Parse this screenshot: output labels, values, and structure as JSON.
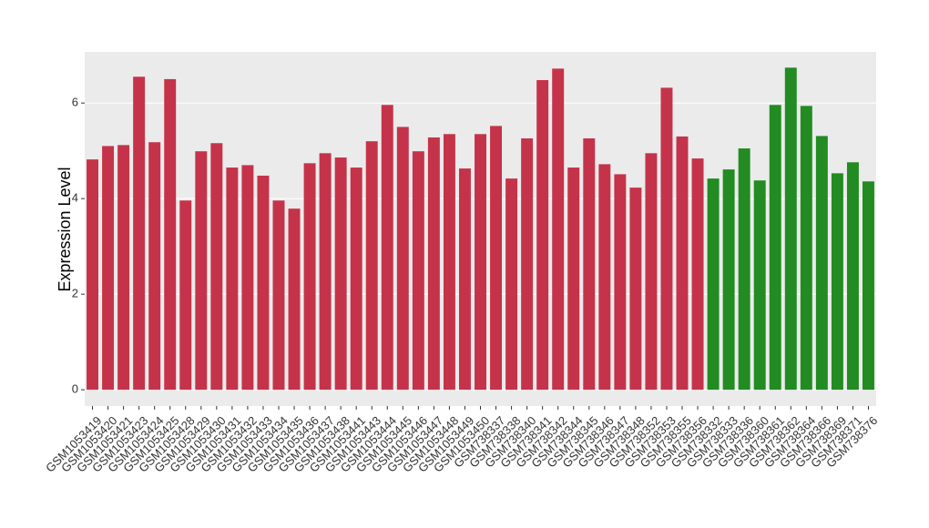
{
  "chart_data": {
    "type": "bar",
    "y_label": "Expression Level",
    "categories": [
      "GSM1053419",
      "GSM1053420",
      "GSM1053421",
      "GSM1053423",
      "GSM1053424",
      "GSM1053425",
      "GSM1053428",
      "GSM1053429",
      "GSM1053430",
      "GSM1053431",
      "GSM1053432",
      "GSM1053433",
      "GSM1053434",
      "GSM1053435",
      "GSM1053436",
      "GSM1053437",
      "GSM1053438",
      "GSM1053441",
      "GSM1053443",
      "GSM1053444",
      "GSM1053445",
      "GSM1053446",
      "GSM1053447",
      "GSM1053448",
      "GSM1053449",
      "GSM1053450",
      "GSM738337",
      "GSM738338",
      "GSM738340",
      "GSM738341",
      "GSM738342",
      "GSM738344",
      "GSM738345",
      "GSM738346",
      "GSM738347",
      "GSM738348",
      "GSM738352",
      "GSM738353",
      "GSM738355",
      "GSM738356",
      "GSM738332",
      "GSM738333",
      "GSM738336",
      "GSM738360",
      "GSM738361",
      "GSM738362",
      "GSM738364",
      "GSM738366",
      "GSM738369",
      "GSM738371",
      "GSM738376"
    ],
    "values": [
      4.82,
      5.1,
      5.12,
      6.55,
      5.18,
      6.5,
      3.96,
      4.99,
      5.16,
      4.65,
      4.7,
      4.48,
      3.96,
      3.79,
      4.74,
      4.95,
      4.86,
      4.65,
      5.2,
      5.96,
      5.5,
      4.99,
      5.28,
      5.35,
      4.63,
      5.35,
      5.52,
      4.42,
      5.26,
      6.48,
      6.72,
      4.65,
      5.26,
      4.72,
      4.51,
      4.23,
      4.95,
      6.32,
      5.3,
      4.84,
      4.42,
      4.61,
      5.05,
      4.38,
      5.96,
      6.74,
      5.94,
      5.31,
      4.53,
      4.76,
      4.36
    ],
    "colors": [
      "#c5334a",
      "#c5334a",
      "#c5334a",
      "#c5334a",
      "#c5334a",
      "#c5334a",
      "#c5334a",
      "#c5334a",
      "#c5334a",
      "#c5334a",
      "#c5334a",
      "#c5334a",
      "#c5334a",
      "#c5334a",
      "#c5334a",
      "#c5334a",
      "#c5334a",
      "#c5334a",
      "#c5334a",
      "#c5334a",
      "#c5334a",
      "#c5334a",
      "#c5334a",
      "#c5334a",
      "#c5334a",
      "#c5334a",
      "#c5334a",
      "#c5334a",
      "#c5334a",
      "#c5334a",
      "#c5334a",
      "#c5334a",
      "#c5334a",
      "#c5334a",
      "#c5334a",
      "#c5334a",
      "#c5334a",
      "#c5334a",
      "#c5334a",
      "#c5334a",
      "#228b22",
      "#228b22",
      "#228b22",
      "#228b22",
      "#228b22",
      "#228b22",
      "#228b22",
      "#228b22",
      "#228b22",
      "#228b22",
      "#228b22"
    ],
    "ylim": [
      -0.34,
      7.07
    ],
    "yticks": [
      0,
      2,
      4,
      6
    ],
    "grid": true
  }
}
